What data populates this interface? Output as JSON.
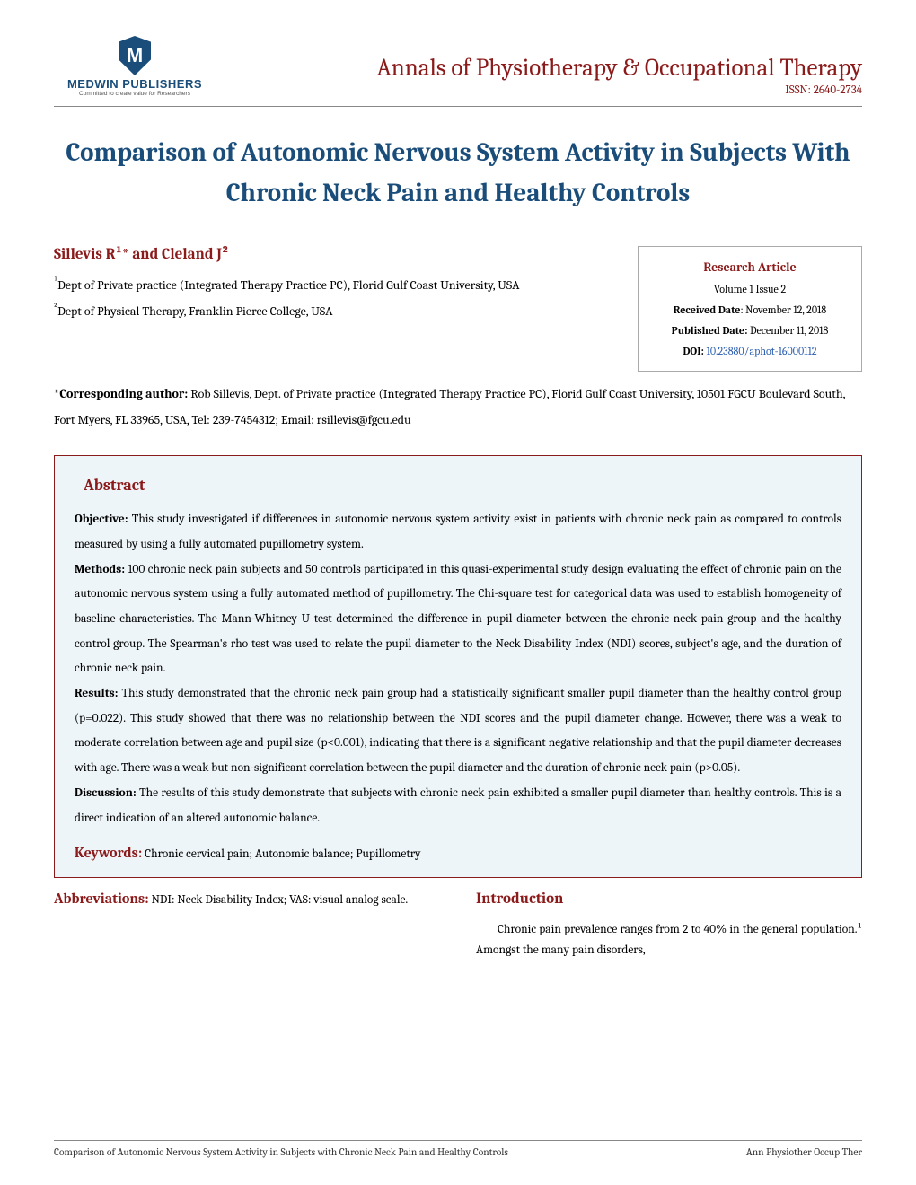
{
  "publisher": {
    "name": "MEDWIN PUBLISHERS",
    "tagline": "Committed to create value for Researchers",
    "logo_letter": "M",
    "logo_color": "#1a4d7a"
  },
  "journal": {
    "name": "Annals of Physiotherapy & Occupational Therapy",
    "issn": "ISSN: 2640-2734",
    "color": "#8b1a1a"
  },
  "article": {
    "title": "Comparison of Autonomic Nervous System Activity in Subjects With Chronic Neck Pain and Healthy Controls",
    "authors": "Sillevis R¹* and Cleland J²",
    "affil1_prefix": "¹",
    "affil1": "Dept of Private practice (Integrated Therapy Practice PC), Florid Gulf Coast University, USA",
    "affil2_prefix": "²",
    "affil2": "Dept of Physical Therapy, Franklin Pierce College, USA",
    "corresponding_label": "*Corresponding author:",
    "corresponding": " Rob Sillevis, Dept. of Private practice (Integrated Therapy Practice PC), Florid Gulf Coast University, 10501 FGCU Boulevard South, Fort Myers, FL 33965, USA, Tel: 239-7454312; Email: rsillevis@fgcu.edu"
  },
  "metabox": {
    "type": "Research Article",
    "volume": "Volume 1 Issue 2",
    "received_label": "Received Date",
    "received": ": November 12, 2018",
    "published_label": "Published Date:",
    "published": " December 11, 2018",
    "doi_label": "DOI:",
    "doi": "10.23880/aphot-16000112"
  },
  "abstract": {
    "heading": "Abstract",
    "objective_label": "Objective:",
    "objective": " This study investigated if differences in autonomic nervous system activity exist in patients with chronic neck pain as compared to controls measured by using a fully automated pupillometry system.",
    "methods_label": "Methods:",
    "methods": " 100 chronic neck pain subjects and 50 controls participated in this quasi-experimental study design evaluating the effect of chronic pain on the autonomic nervous system using a fully automated method of pupillometry. The Chi-square test for categorical data was used to establish homogeneity of baseline characteristics. The Mann-Whitney U test determined the difference in pupil diameter between the chronic neck pain group and the healthy control group. The Spearman's rho test was used to relate the pupil diameter to the Neck Disability Index (NDI) scores, subject's age, and the duration of chronic neck pain.",
    "results_label": "Results:",
    "results": " This study demonstrated that the chronic neck pain group had a statistically significant smaller pupil diameter than the healthy control group (p=0.022). This study showed that there was no relationship between the NDI scores and the pupil diameter change. However, there was a weak to moderate correlation between age and pupil size (p<0.001), indicating that there is a significant negative relationship and that the pupil diameter decreases with age. There was a weak but non-significant correlation between the pupil diameter and the duration of chronic neck pain (p>0.05).",
    "discussion_label": "Discussion:",
    "discussion": " The results of this study demonstrate that subjects with chronic neck pain exhibited a smaller pupil diameter than healthy controls. This is a direct indication of an altered autonomic balance.",
    "keywords_label": "Keywords:",
    "keywords": " Chronic cervical pain; Autonomic balance; Pupillometry"
  },
  "abbreviations": {
    "label": "Abbreviations:",
    "text": " NDI: Neck Disability Index; VAS: visual analog scale."
  },
  "introduction": {
    "heading": "Introduction",
    "text": "Chronic pain prevalence ranges from 2 to 40% in the general population.¹ Amongst the many pain disorders,"
  },
  "footer": {
    "left": "Comparison of Autonomic Nervous System Activity in Subjects with Chronic Neck Pain and Healthy Controls",
    "right": "Ann Physiother Occup Ther"
  },
  "styles": {
    "title_color": "#1a4d7a",
    "accent_color": "#8b1a1a",
    "abstract_bg": "#eef5f9",
    "doi_link_color": "#2a5db0"
  }
}
